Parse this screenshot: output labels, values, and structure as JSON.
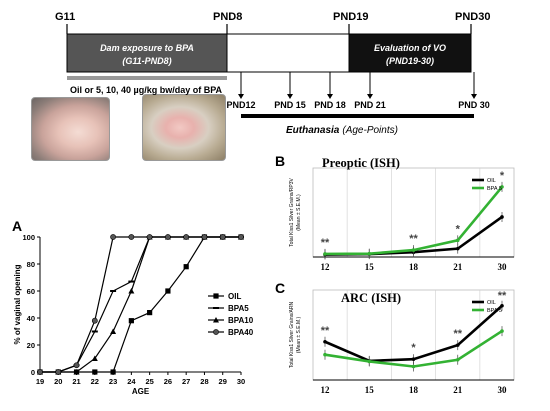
{
  "timeline": {
    "labels_top": [
      "G11",
      "PND8",
      "PND19",
      "PND30"
    ],
    "exposure_text_1": "Dam exposure to BPA",
    "exposure_text_2": "(G11-PND8)",
    "vo_text_1": "Evaluation of VO",
    "vo_text_2": "(PND19-30)",
    "dose_text": "Oil or 5, 10, 40 µg/kg bw/day of BPA",
    "pnd_points": [
      "PND12",
      "PND 15",
      "PND 18",
      "PND 21",
      "PND 30"
    ],
    "euthanasia_label": "Euthanasia",
    "euthanasia_suffix": "(Age-Points)",
    "colors": {
      "exposure_bar": "#555555",
      "vo_bar": "#111111"
    }
  },
  "photos": {
    "left_icon": "pup-photo-icon",
    "right_icon": "litter-photo-icon"
  },
  "chart_data": [
    {
      "panel": "A",
      "type": "line",
      "ylabel": "% of vaginal opening",
      "xlabel": "AGE",
      "x": [
        19,
        20,
        21,
        22,
        23,
        24,
        25,
        26,
        27,
        28,
        29,
        30
      ],
      "xlim": [
        19,
        30
      ],
      "ylim": [
        0,
        100
      ],
      "yticks": [
        0,
        20,
        40,
        60,
        80,
        100
      ],
      "legend_position": "right",
      "series": [
        {
          "name": "OIL",
          "marker": "square",
          "color": "#000000",
          "values": [
            0,
            0,
            0,
            0,
            0,
            38,
            44,
            60,
            78,
            100,
            100,
            100
          ]
        },
        {
          "name": "BPA5",
          "marker": "dash",
          "color": "#000000",
          "values": [
            0,
            0,
            5,
            30,
            60,
            67,
            100,
            100,
            100,
            100,
            100,
            100
          ]
        },
        {
          "name": "BPA10",
          "marker": "triangle",
          "color": "#000000",
          "values": [
            0,
            0,
            0,
            10,
            30,
            60,
            100,
            100,
            100,
            100,
            100,
            100
          ]
        },
        {
          "name": "BPA40",
          "marker": "circle",
          "color": "#000000",
          "values": [
            0,
            0,
            5,
            38,
            100,
            100,
            100,
            100,
            100,
            100,
            100,
            100
          ]
        }
      ]
    },
    {
      "panel": "B",
      "type": "line",
      "title": "Preoptic (ISH)",
      "ylabel_1": "Total Kiss1 Silver Grains/RP3V",
      "ylabel_2": "(Mean ± S.E.M.)",
      "categories": [
        "12",
        "15",
        "18",
        "21",
        "30"
      ],
      "ylim": [
        0,
        8000
      ],
      "grid": true,
      "legend_position": "top-right",
      "series": [
        {
          "name": "OIL",
          "color": "#000000",
          "values": [
            220,
            260,
            430,
            750,
            3600
          ]
        },
        {
          "name": "BPA 5",
          "color": "#33b233",
          "values": [
            280,
            300,
            620,
            1500,
            6300
          ]
        }
      ],
      "annotations": [
        {
          "category": "12",
          "text": "**"
        },
        {
          "category": "18",
          "text": "**"
        },
        {
          "category": "21",
          "text": "*"
        },
        {
          "category": "30",
          "text": "*"
        }
      ]
    },
    {
      "panel": "C",
      "type": "line",
      "title": "ARC (ISH)",
      "ylabel_1": "Total Kiss1 Silver Grains/ARN",
      "ylabel_2": "(Mean ± S.E.M.)",
      "categories": [
        "12",
        "15",
        "18",
        "21",
        "30"
      ],
      "ylim": [
        0,
        1600
      ],
      "grid": true,
      "legend_position": "top-right",
      "series": [
        {
          "name": "OIL",
          "color": "#000000",
          "values": [
            680,
            340,
            370,
            620,
            1320
          ]
        },
        {
          "name": "BPA 5",
          "color": "#33b233",
          "values": [
            450,
            330,
            240,
            360,
            870
          ]
        }
      ],
      "annotations": [
        {
          "category": "12",
          "text": "**"
        },
        {
          "category": "18",
          "text": "*"
        },
        {
          "category": "21",
          "text": "**"
        },
        {
          "category": "30",
          "text": "**"
        }
      ]
    }
  ]
}
